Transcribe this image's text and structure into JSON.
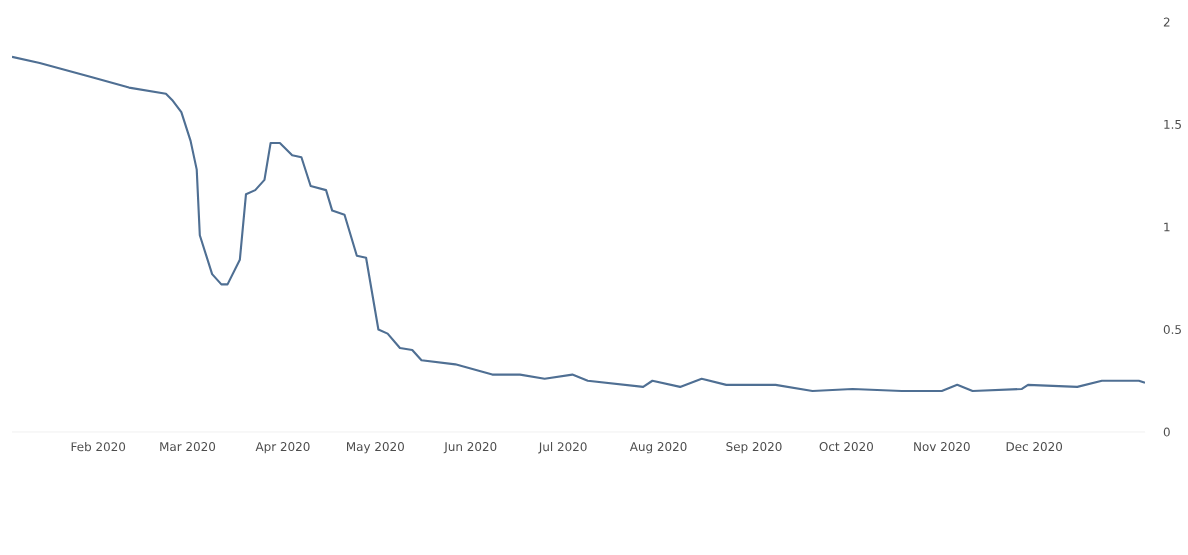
{
  "chart_data": {
    "type": "line",
    "x": [
      "2020-01-04",
      "2020-01-13",
      "2020-01-30",
      "2020-02-11",
      "2020-02-23",
      "2020-02-25",
      "2020-02-28",
      "2020-03-02",
      "2020-03-04",
      "2020-03-05",
      "2020-03-09",
      "2020-03-12",
      "2020-03-14",
      "2020-03-18",
      "2020-03-20",
      "2020-03-23",
      "2020-03-26",
      "2020-03-28",
      "2020-03-31",
      "2020-04-04",
      "2020-04-07",
      "2020-04-10",
      "2020-04-15",
      "2020-04-17",
      "2020-04-21",
      "2020-04-25",
      "2020-04-28",
      "2020-05-02",
      "2020-05-05",
      "2020-05-09",
      "2020-05-13",
      "2020-05-16",
      "2020-05-27",
      "2020-06-08",
      "2020-06-17",
      "2020-06-25",
      "2020-07-04",
      "2020-07-09",
      "2020-07-27",
      "2020-07-30",
      "2020-08-08",
      "2020-08-15",
      "2020-08-23",
      "2020-09-08",
      "2020-09-20",
      "2020-10-03",
      "2020-10-19",
      "2020-11-01",
      "2020-11-06",
      "2020-11-11",
      "2020-11-27",
      "2020-11-29",
      "2020-12-15",
      "2020-12-23",
      "2021-01-04",
      "2021-01-06"
    ],
    "series": [
      {
        "color": "#4f6f93",
        "values": [
          1.83,
          1.8,
          1.73,
          1.68,
          1.65,
          1.62,
          1.56,
          1.42,
          1.28,
          0.96,
          0.77,
          0.72,
          0.72,
          0.84,
          1.16,
          1.18,
          1.23,
          1.41,
          1.41,
          1.35,
          1.34,
          1.2,
          1.18,
          1.08,
          1.06,
          0.86,
          0.85,
          0.5,
          0.48,
          0.41,
          0.4,
          0.35,
          0.33,
          0.28,
          0.28,
          0.26,
          0.28,
          0.25,
          0.22,
          0.25,
          0.22,
          0.26,
          0.23,
          0.23,
          0.2,
          0.21,
          0.2,
          0.2,
          0.23,
          0.2,
          0.21,
          0.23,
          0.22,
          0.25,
          0.25,
          0.24
        ]
      }
    ],
    "xticks": [
      {
        "value": "2020-02-01",
        "label": "Feb 2020"
      },
      {
        "value": "2020-03-01",
        "label": "Mar 2020"
      },
      {
        "value": "2020-04-01",
        "label": "Apr 2020"
      },
      {
        "value": "2020-05-01",
        "label": "May 2020"
      },
      {
        "value": "2020-06-01",
        "label": "Jun 2020"
      },
      {
        "value": "2020-07-01",
        "label": "Jul 2020"
      },
      {
        "value": "2020-08-01",
        "label": "Aug 2020"
      },
      {
        "value": "2020-09-01",
        "label": "Sep 2020"
      },
      {
        "value": "2020-10-01",
        "label": "Oct 2020"
      },
      {
        "value": "2020-11-01",
        "label": "Nov 2020"
      },
      {
        "value": "2020-12-01",
        "label": "Dec 2020"
      }
    ],
    "xlim": [
      "2020-01-04",
      "2021-01-06"
    ],
    "ylim": [
      0,
      2
    ],
    "yticks": [
      0,
      0.5,
      1,
      1.5,
      2
    ],
    "grid": false,
    "marker": "none",
    "line_style": "solid"
  }
}
